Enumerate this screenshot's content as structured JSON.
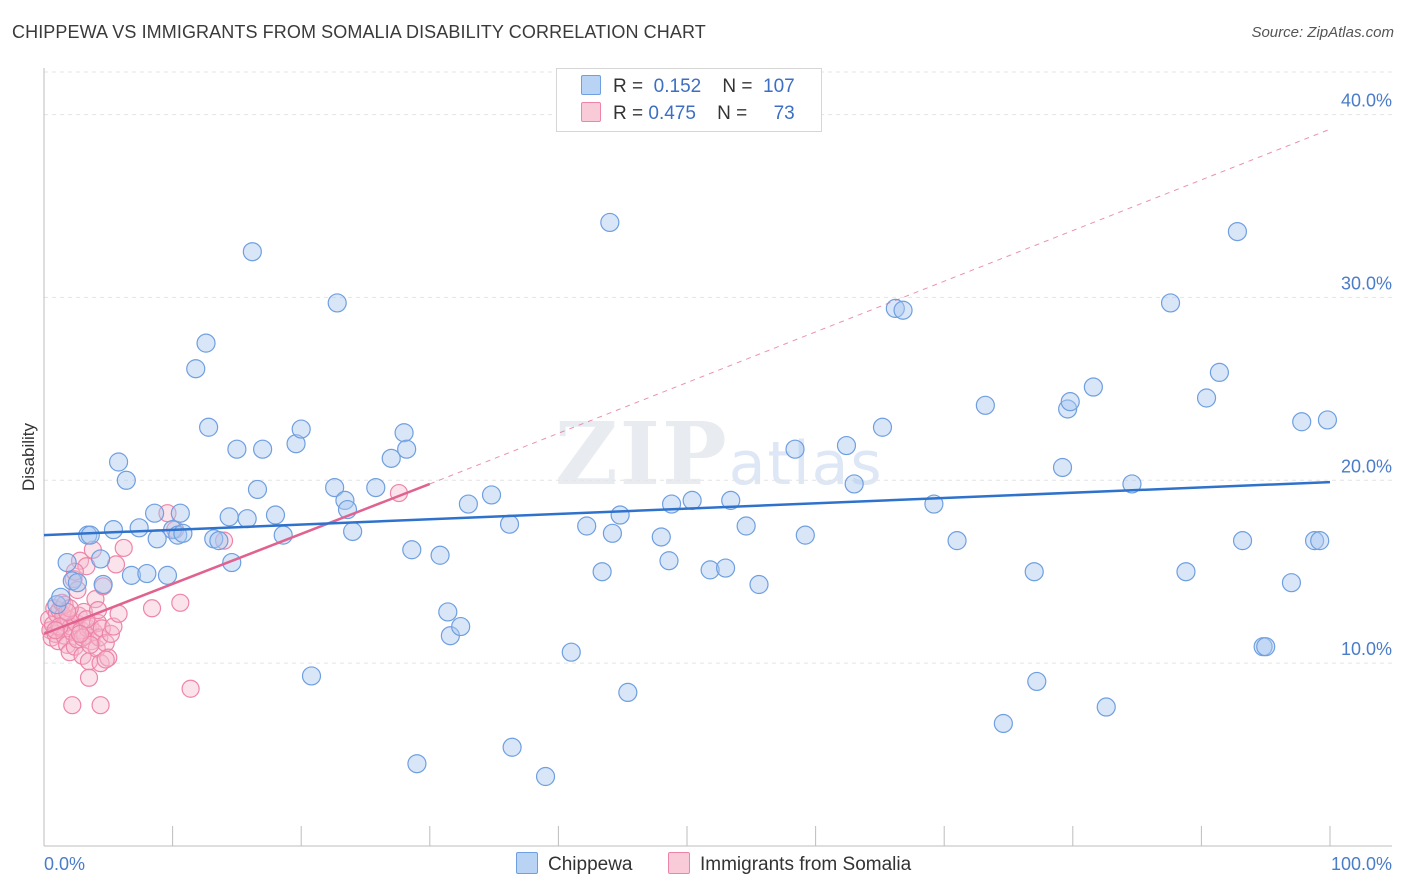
{
  "header": {
    "title": "CHIPPEWA VS IMMIGRANTS FROM SOMALIA DISABILITY CORRELATION CHART",
    "source": "Source: ZipAtlas.com"
  },
  "legend": {
    "rows": [
      {
        "r_label": "R =",
        "r_value": "0.152",
        "n_label": "N =",
        "n_value": "107"
      },
      {
        "r_label": "R =",
        "r_value": "0.475",
        "n_label": "N =",
        "n_value": "73"
      }
    ]
  },
  "bottom_legend": [
    {
      "label": "Chippewa"
    },
    {
      "label": "Immigrants from Somalia"
    }
  ],
  "watermark": {
    "zip": "ZIP",
    "atlas": "atlas"
  },
  "colors": {
    "blue_fill": "#a9c8f0",
    "blue_stroke": "#6f9fe0",
    "blue_line": "#2f72cc",
    "pink_fill": "#f6b8cc",
    "pink_stroke": "#ee85a8",
    "pink_line": "#e0628f",
    "tick_text": "#4a7cc9",
    "grid": "#e4e4e4"
  },
  "chart_data": {
    "type": "scatter",
    "title": "CHIPPEWA VS IMMIGRANTS FROM SOMALIA DISABILITY CORRELATION CHART",
    "xlabel": "",
    "ylabel": "Disability",
    "xlim": [
      0,
      100
    ],
    "ylim": [
      0,
      42
    ],
    "x_tick_labels": [
      "0.0%",
      "100.0%"
    ],
    "y_ticks": [
      10,
      20,
      30,
      40
    ],
    "y_tick_labels": [
      "10.0%",
      "20.0%",
      "30.0%",
      "40.0%"
    ],
    "grid": true,
    "legend_position": "top-center",
    "series": [
      {
        "name": "Chippewa",
        "R": 0.152,
        "N": 107,
        "trend": {
          "x": [
            0,
            100
          ],
          "y": [
            17.0,
            19.9
          ],
          "dashed": false
        },
        "points": [
          [
            1.0,
            13.2
          ],
          [
            1.3,
            13.6
          ],
          [
            1.8,
            15.5
          ],
          [
            2.2,
            14.5
          ],
          [
            2.6,
            14.4
          ],
          [
            3.4,
            17.0
          ],
          [
            3.6,
            17.0
          ],
          [
            4.4,
            15.7
          ],
          [
            4.6,
            14.3
          ],
          [
            5.4,
            17.3
          ],
          [
            5.8,
            21.0
          ],
          [
            6.4,
            20.0
          ],
          [
            6.8,
            14.8
          ],
          [
            7.4,
            17.4
          ],
          [
            8.0,
            14.9
          ],
          [
            8.6,
            18.2
          ],
          [
            8.8,
            16.8
          ],
          [
            9.6,
            14.8
          ],
          [
            10.0,
            17.3
          ],
          [
            10.4,
            17.0
          ],
          [
            10.6,
            18.2
          ],
          [
            10.8,
            17.1
          ],
          [
            11.8,
            26.1
          ],
          [
            12.6,
            27.5
          ],
          [
            12.8,
            22.9
          ],
          [
            13.2,
            16.8
          ],
          [
            13.6,
            16.7
          ],
          [
            14.4,
            18.0
          ],
          [
            14.6,
            15.5
          ],
          [
            15.0,
            21.7
          ],
          [
            15.8,
            17.9
          ],
          [
            16.2,
            32.5
          ],
          [
            16.6,
            19.5
          ],
          [
            17.0,
            21.7
          ],
          [
            18.0,
            18.1
          ],
          [
            18.6,
            17.0
          ],
          [
            19.6,
            22.0
          ],
          [
            20.0,
            22.8
          ],
          [
            20.8,
            9.3
          ],
          [
            22.6,
            19.6
          ],
          [
            22.8,
            29.7
          ],
          [
            23.4,
            18.9
          ],
          [
            23.6,
            18.4
          ],
          [
            24.0,
            17.2
          ],
          [
            25.8,
            19.6
          ],
          [
            27.0,
            21.2
          ],
          [
            28.0,
            22.6
          ],
          [
            28.2,
            21.7
          ],
          [
            28.6,
            16.2
          ],
          [
            29.0,
            4.5
          ],
          [
            30.8,
            15.9
          ],
          [
            31.4,
            12.8
          ],
          [
            31.6,
            11.5
          ],
          [
            32.4,
            12.0
          ],
          [
            33.0,
            18.7
          ],
          [
            34.8,
            19.2
          ],
          [
            36.2,
            17.6
          ],
          [
            36.4,
            5.4
          ],
          [
            39.0,
            3.8
          ],
          [
            41.0,
            10.6
          ],
          [
            42.2,
            17.5
          ],
          [
            43.4,
            15.0
          ],
          [
            44.0,
            34.1
          ],
          [
            44.2,
            17.1
          ],
          [
            44.8,
            18.1
          ],
          [
            45.4,
            8.4
          ],
          [
            48.0,
            16.9
          ],
          [
            48.6,
            15.6
          ],
          [
            48.8,
            18.7
          ],
          [
            50.4,
            18.9
          ],
          [
            51.8,
            15.1
          ],
          [
            53.0,
            15.2
          ],
          [
            53.4,
            18.9
          ],
          [
            54.6,
            17.5
          ],
          [
            55.6,
            14.3
          ],
          [
            58.4,
            21.7
          ],
          [
            59.2,
            17.0
          ],
          [
            62.4,
            21.9
          ],
          [
            63.0,
            19.8
          ],
          [
            65.2,
            22.9
          ],
          [
            66.2,
            29.4
          ],
          [
            66.8,
            29.3
          ],
          [
            69.2,
            18.7
          ],
          [
            71.0,
            16.7
          ],
          [
            73.2,
            24.1
          ],
          [
            74.6,
            6.7
          ],
          [
            77.0,
            15.0
          ],
          [
            77.2,
            9.0
          ],
          [
            79.2,
            20.7
          ],
          [
            79.6,
            23.9
          ],
          [
            79.8,
            24.3
          ],
          [
            81.6,
            25.1
          ],
          [
            82.6,
            7.6
          ],
          [
            84.6,
            19.8
          ],
          [
            87.6,
            29.7
          ],
          [
            88.8,
            15.0
          ],
          [
            90.4,
            24.5
          ],
          [
            91.4,
            25.9
          ],
          [
            92.8,
            33.6
          ],
          [
            93.2,
            16.7
          ],
          [
            94.8,
            10.9
          ],
          [
            97.0,
            14.4
          ],
          [
            97.8,
            23.2
          ],
          [
            98.8,
            16.7
          ],
          [
            99.2,
            16.7
          ],
          [
            99.8,
            23.3
          ],
          [
            95.0,
            10.9
          ]
        ]
      },
      {
        "name": "Immigrants from Somalia",
        "R": 0.475,
        "N": 73,
        "trend": {
          "x": [
            0,
            30
          ],
          "y": [
            11.6,
            19.8
          ],
          "dashed": false
        },
        "trend_extension": {
          "x": [
            30,
            100
          ],
          "y": [
            19.8,
            39.2
          ],
          "dashed": true
        },
        "points": [
          [
            0.4,
            12.4
          ],
          [
            0.5,
            11.8
          ],
          [
            0.6,
            11.4
          ],
          [
            0.7,
            12.1
          ],
          [
            0.8,
            13.0
          ],
          [
            0.9,
            11.6
          ],
          [
            1.0,
            12.7
          ],
          [
            1.1,
            11.2
          ],
          [
            1.2,
            12.9
          ],
          [
            1.3,
            11.9
          ],
          [
            1.4,
            13.3
          ],
          [
            1.5,
            12.6
          ],
          [
            1.6,
            11.5
          ],
          [
            1.7,
            12.2
          ],
          [
            1.8,
            11.0
          ],
          [
            1.9,
            12.4
          ],
          [
            2.0,
            10.6
          ],
          [
            2.1,
            12.0
          ],
          [
            2.2,
            11.7
          ],
          [
            2.3,
            14.6
          ],
          [
            2.4,
            10.9
          ],
          [
            2.5,
            12.2
          ],
          [
            2.6,
            11.3
          ],
          [
            2.7,
            12.6
          ],
          [
            2.8,
            15.6
          ],
          [
            2.9,
            11.8
          ],
          [
            3.0,
            10.4
          ],
          [
            3.1,
            12.8
          ],
          [
            3.2,
            11.5
          ],
          [
            3.3,
            15.3
          ],
          [
            3.4,
            11.9
          ],
          [
            3.5,
            10.1
          ],
          [
            3.6,
            12.0
          ],
          [
            3.7,
            11.2
          ],
          [
            3.8,
            16.2
          ],
          [
            3.9,
            11.7
          ],
          [
            4.0,
            13.5
          ],
          [
            4.1,
            10.8
          ],
          [
            4.2,
            12.2
          ],
          [
            4.3,
            11.4
          ],
          [
            4.4,
            10.0
          ],
          [
            4.5,
            11.9
          ],
          [
            4.6,
            14.2
          ],
          [
            4.8,
            11.1
          ],
          [
            5.0,
            10.3
          ],
          [
            5.2,
            11.6
          ],
          [
            5.4,
            12.0
          ],
          [
            5.6,
            15.4
          ],
          [
            5.8,
            12.7
          ],
          [
            6.2,
            16.3
          ],
          [
            2.2,
            7.7
          ],
          [
            4.4,
            7.7
          ],
          [
            3.5,
            9.2
          ],
          [
            4.8,
            10.2
          ],
          [
            8.4,
            13.0
          ],
          [
            9.6,
            18.2
          ],
          [
            10.2,
            17.3
          ],
          [
            10.6,
            13.3
          ],
          [
            11.4,
            8.6
          ],
          [
            14.0,
            16.7
          ],
          [
            27.6,
            19.3
          ],
          [
            1.6,
            13.2
          ],
          [
            2.6,
            14.0
          ],
          [
            3.3,
            12.4
          ],
          [
            1.2,
            12.0
          ],
          [
            0.9,
            11.8
          ],
          [
            2.0,
            13.0
          ],
          [
            3.0,
            11.4
          ],
          [
            4.2,
            12.9
          ],
          [
            1.8,
            12.8
          ],
          [
            2.4,
            15.0
          ],
          [
            3.6,
            11.0
          ],
          [
            2.8,
            11.6
          ]
        ]
      }
    ]
  }
}
